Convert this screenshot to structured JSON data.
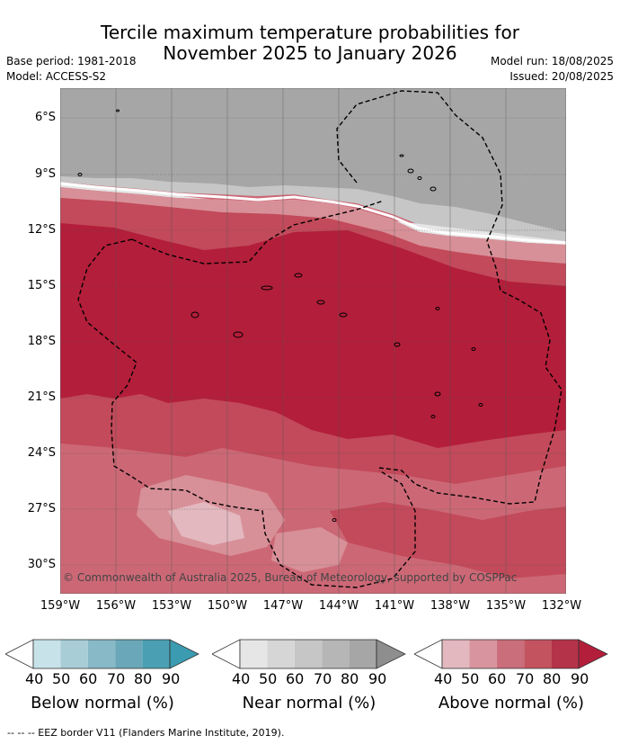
{
  "title": {
    "line1": "Tercile maximum temperature probabilities for",
    "line2": "November 2025 to January 2026"
  },
  "meta": {
    "base_period": "Base period: 1981-2018",
    "model": "Model: ACCESS-S2",
    "model_run": "Model run: 18/08/2025",
    "issued": "Issued: 20/08/2025"
  },
  "map": {
    "copyright": "© Commonwealth of Australia 2025, Bureau of Meteorology, supported by COSPPac",
    "lon_ticks": [
      "159°W",
      "156°W",
      "153°W",
      "150°W",
      "147°W",
      "144°W",
      "141°W",
      "138°W",
      "135°W",
      "132°W"
    ],
    "lat_ticks": [
      "6°S",
      "9°S",
      "12°S",
      "15°S",
      "18°S",
      "21°S",
      "24°S",
      "27°S",
      "30°S"
    ],
    "colors": {
      "near_normal_dominant": "#a6a6a6",
      "above_80_90": "#b31e3a",
      "above_70_80": "#c24a5a",
      "above_60_70": "#cc6876",
      "above_50_60": "#d89098"
    }
  },
  "colorbars": [
    {
      "title": "Below normal (%)",
      "labels": [
        "40",
        "50",
        "60",
        "70",
        "80",
        "90"
      ],
      "colors": [
        "#c8e2ea",
        "#a8cdd6",
        "#88b9c6",
        "#6aa8b9",
        "#4aa0b2"
      ],
      "arrow_color": "#3b9bb0"
    },
    {
      "title": "Near normal (%)",
      "labels": [
        "40",
        "50",
        "60",
        "70",
        "80",
        "90"
      ],
      "colors": [
        "#e6e6e6",
        "#d6d6d6",
        "#c6c6c6",
        "#b6b6b6",
        "#a6a6a6"
      ],
      "arrow_color": "#8e8e8e"
    },
    {
      "title": "Above normal (%)",
      "labels": [
        "40",
        "50",
        "60",
        "70",
        "80",
        "90"
      ],
      "colors": [
        "#e3b8bf",
        "#d8959f",
        "#cb6e7c",
        "#c2535f",
        "#b43348"
      ],
      "arrow_color": "#b31e3a"
    }
  ],
  "footnote": "-- -- -- EEZ border V11 (Flanders Marine Institute, 2019)."
}
